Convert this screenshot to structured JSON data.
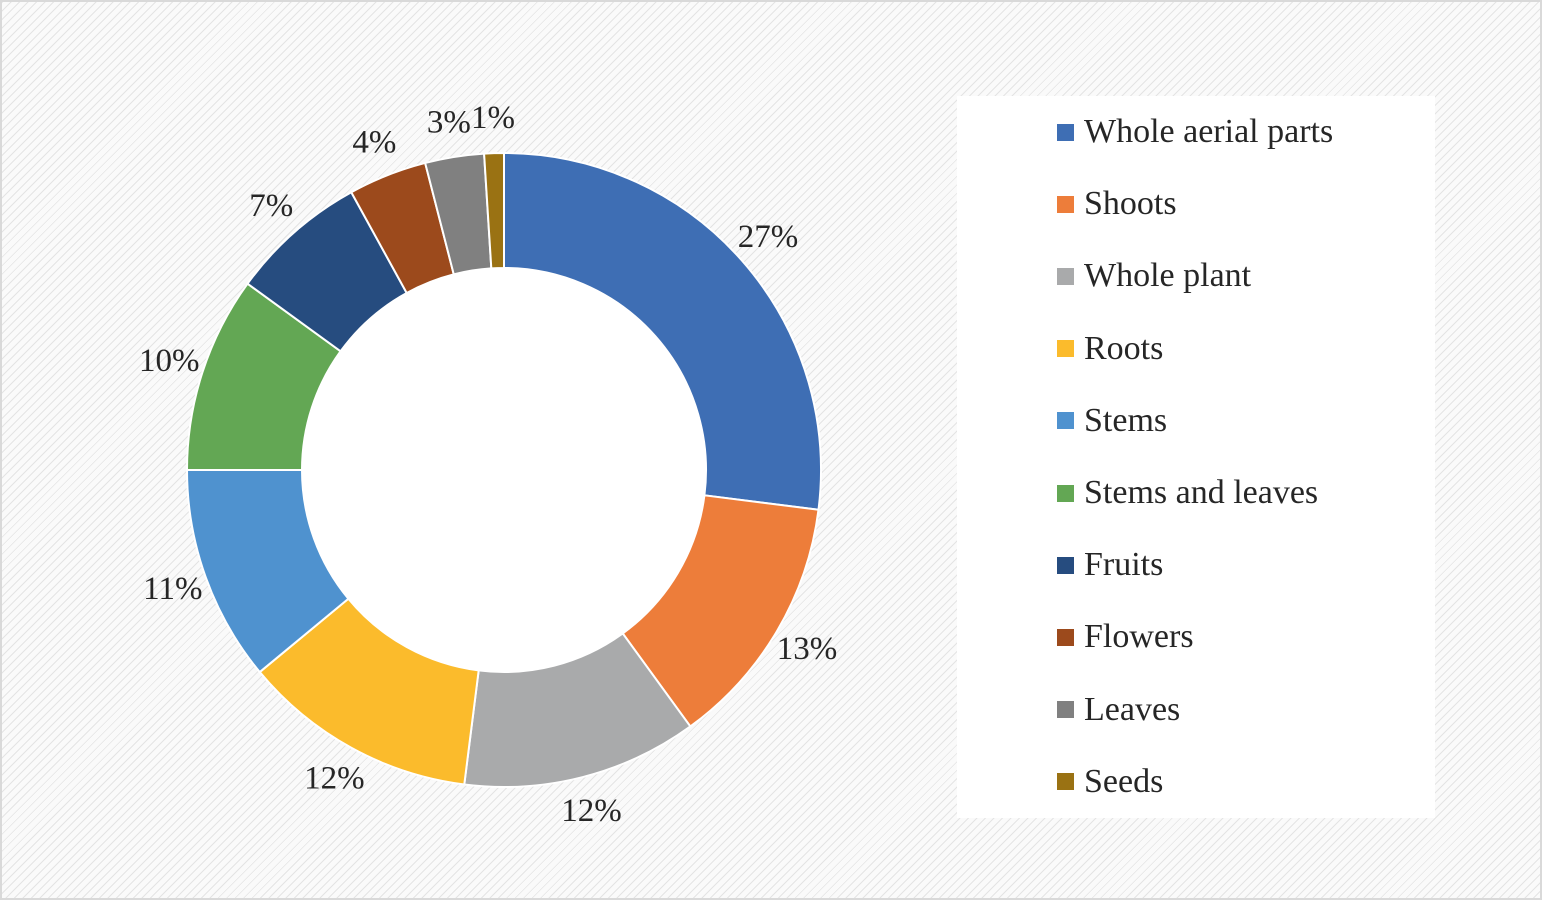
{
  "chart_data": {
    "type": "pie",
    "donut": true,
    "legend_position": "right",
    "slices": [
      {
        "label": "Whole aerial parts",
        "value": 27,
        "data_label": "27%",
        "color": "#3e6eb4"
      },
      {
        "label": "Shoots",
        "value": 13,
        "data_label": "13%",
        "color": "#ed7d3a"
      },
      {
        "label": "Whole plant",
        "value": 12,
        "data_label": "12%",
        "color": "#a9aaab"
      },
      {
        "label": "Roots",
        "value": 12,
        "data_label": "12%",
        "color": "#fbbb2c"
      },
      {
        "label": "Stems",
        "value": 11,
        "data_label": "11%",
        "color": "#4f92cf"
      },
      {
        "label": "Stems and leaves",
        "value": 10,
        "data_label": "10%",
        "color": "#63a754"
      },
      {
        "label": "Fruits",
        "value": 7,
        "data_label": "7%",
        "color": "#264c7f"
      },
      {
        "label": "Flowers",
        "value": 4,
        "data_label": "4%",
        "color": "#9c4a1c"
      },
      {
        "label": "Leaves",
        "value": 3,
        "data_label": "3%",
        "color": "#808080"
      },
      {
        "label": "Seeds",
        "value": 1,
        "data_label": "1%",
        "color": "#9a7213"
      }
    ]
  }
}
